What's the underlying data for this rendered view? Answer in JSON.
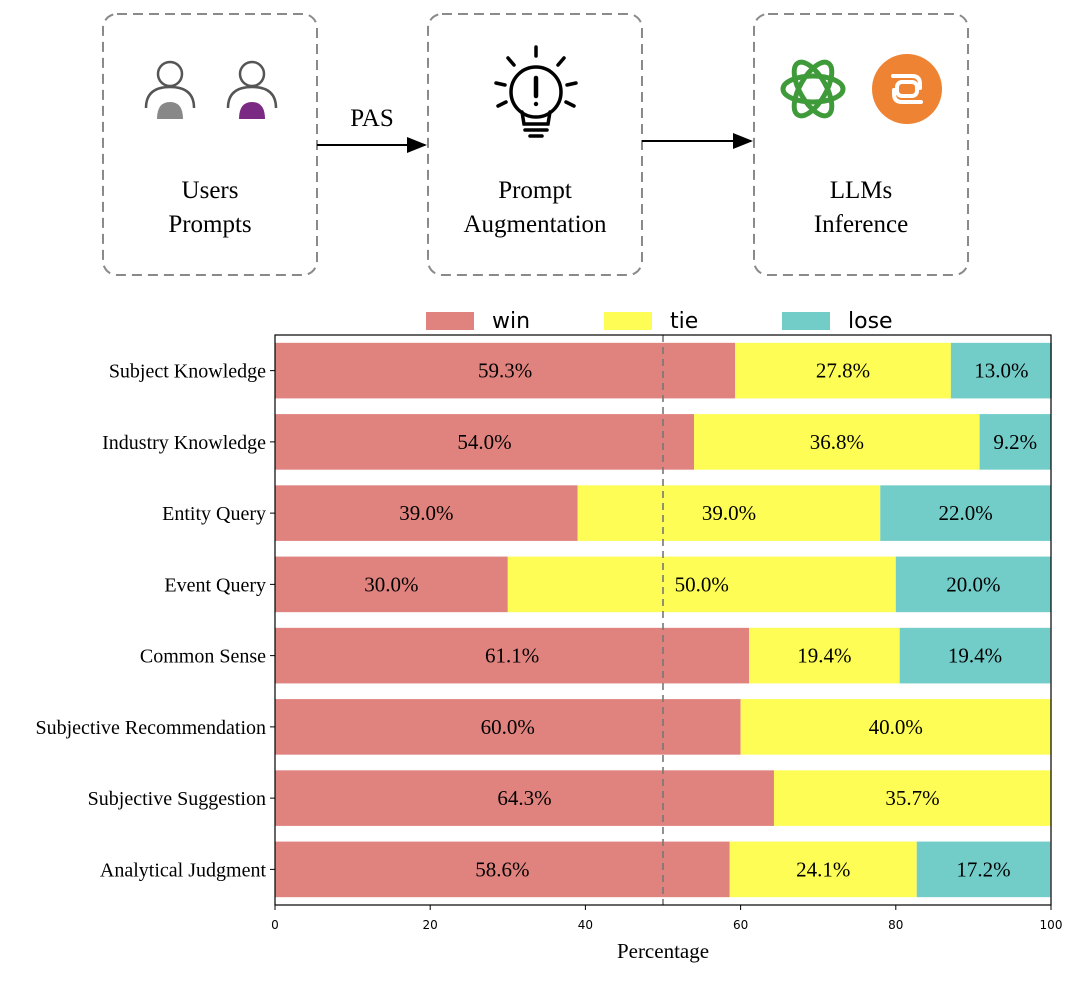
{
  "diagram": {
    "nodes": [
      {
        "id": "users",
        "line1": "Users",
        "line2": "Prompts"
      },
      {
        "id": "augment",
        "line1": "Prompt",
        "line2": "Augmentation"
      },
      {
        "id": "llms",
        "line1": "LLMs",
        "line2": "Inference"
      }
    ],
    "edges": [
      {
        "from": "users",
        "to": "augment",
        "label": "PAS"
      },
      {
        "from": "augment",
        "to": "llms",
        "label": ""
      }
    ],
    "colors": {
      "user_left": "#888888",
      "user_right": "#7b2a83",
      "openai": "#3f9a3a",
      "claude_like_bg": "#ef8334"
    }
  },
  "chart_data": {
    "type": "bar",
    "orientation": "horizontal",
    "stacked": true,
    "title": "",
    "xlabel": "Percentage",
    "ylabel": "",
    "xlim": [
      0,
      100
    ],
    "xticks": [
      0,
      20,
      40,
      60,
      80,
      100
    ],
    "reference_line": 50,
    "legend_position": "top",
    "categories": [
      "Subject Knowledge",
      "Industry Knowledge",
      "Entity Query",
      "Event Query",
      "Common Sense",
      "Subjective Recommendation",
      "Subjective Suggestion",
      "Analytical Judgment"
    ],
    "series": [
      {
        "name": "win",
        "color": "#e0837f",
        "values": [
          59.3,
          54.0,
          39.0,
          30.0,
          61.1,
          60.0,
          64.3,
          58.6
        ],
        "labels": [
          "59.3%",
          "54.0%",
          "39.0%",
          "30.0%",
          "61.1%",
          "60.0%",
          "64.3%",
          "58.6%"
        ]
      },
      {
        "name": "tie",
        "color": "#fdfd55",
        "values": [
          27.8,
          36.8,
          39.0,
          50.0,
          19.4,
          40.0,
          35.7,
          24.1
        ],
        "labels": [
          "27.8%",
          "36.8%",
          "39.0%",
          "50.0%",
          "19.4%",
          "40.0%",
          "35.7%",
          "24.1%"
        ]
      },
      {
        "name": "lose",
        "color": "#72cdc9",
        "values": [
          13.0,
          9.2,
          22.0,
          20.0,
          19.4,
          0,
          0,
          17.2
        ],
        "labels": [
          "13.0%",
          "9.2%",
          "22.0%",
          "20.0%",
          "19.4%",
          "",
          "",
          "17.2%"
        ]
      }
    ]
  }
}
